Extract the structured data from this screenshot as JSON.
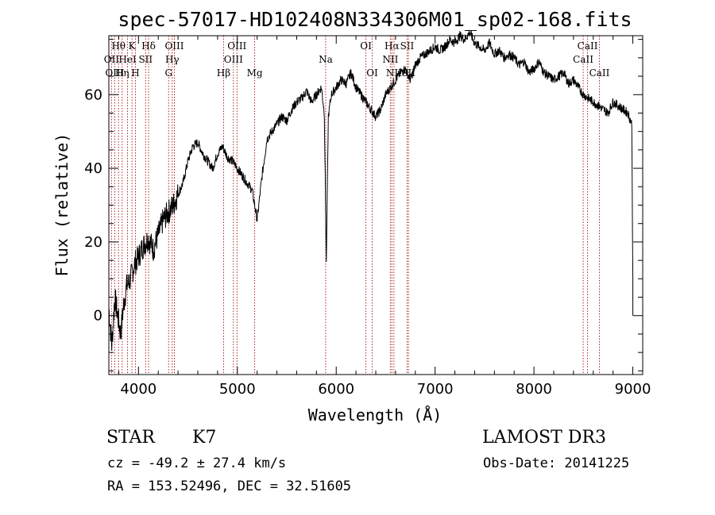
{
  "chart_data": {
    "type": "line",
    "title": "spec-57017-HD102408N334306M01_sp02-168.fits",
    "xlabel": "Wavelength (Å)",
    "ylabel": "Flux (relative)",
    "xlim": [
      3700,
      9100
    ],
    "ylim": [
      -16,
      76
    ],
    "xticks": [
      4000,
      5000,
      6000,
      7000,
      8000,
      9000
    ],
    "xtick_labels": [
      "4000",
      "5000",
      "6000",
      "7000",
      "8000",
      "9000"
    ],
    "yticks": [
      0,
      20,
      40,
      60
    ],
    "ytick_labels": [
      "0",
      "20",
      "40",
      "60"
    ],
    "series": [
      {
        "name": "flux",
        "x": [
          3700,
          3730,
          3760,
          3790,
          3820,
          3850,
          3880,
          3920,
          3960,
          4000,
          4050,
          4100,
          4150,
          4200,
          4250,
          4300,
          4350,
          4400,
          4450,
          4500,
          4550,
          4600,
          4650,
          4700,
          4750,
          4800,
          4850,
          4900,
          4950,
          5000,
          5050,
          5100,
          5150,
          5200,
          5250,
          5300,
          5350,
          5400,
          5450,
          5500,
          5550,
          5600,
          5650,
          5700,
          5750,
          5800,
          5850,
          5880,
          5900,
          5920,
          5950,
          6000,
          6050,
          6100,
          6150,
          6200,
          6250,
          6300,
          6350,
          6400,
          6450,
          6500,
          6550,
          6600,
          6650,
          6700,
          6750,
          6800,
          6850,
          6900,
          6950,
          7000,
          7050,
          7100,
          7150,
          7200,
          7250,
          7300,
          7350,
          7400,
          7450,
          7500,
          7550,
          7600,
          7650,
          7700,
          7750,
          7800,
          7850,
          7900,
          7950,
          8000,
          8050,
          8100,
          8150,
          8200,
          8250,
          8300,
          8350,
          8400,
          8450,
          8500,
          8550,
          8600,
          8650,
          8700,
          8750,
          8800,
          8850,
          8900,
          8950,
          8990,
          9000
        ],
        "y": [
          2,
          -8,
          5,
          0,
          -5,
          3,
          8,
          10,
          14,
          16,
          19,
          21,
          18,
          22,
          26,
          28,
          30,
          33,
          36,
          42,
          46,
          47,
          44,
          42,
          40,
          44,
          46,
          43,
          42,
          40,
          38,
          36,
          34,
          26,
          38,
          48,
          50,
          52,
          54,
          53,
          56,
          58,
          59,
          61,
          58,
          60,
          62,
          55,
          14,
          54,
          60,
          62,
          64,
          63,
          66,
          62,
          60,
          58,
          56,
          54,
          56,
          60,
          62,
          64,
          66,
          67,
          64,
          68,
          70,
          71,
          72,
          73,
          72,
          73,
          75,
          74,
          76,
          75,
          77,
          74,
          73,
          72,
          74,
          71,
          72,
          70,
          71,
          70,
          68,
          69,
          66,
          67,
          69,
          66,
          65,
          64,
          65,
          66,
          63,
          64,
          62,
          60,
          59,
          58,
          57,
          56,
          55,
          58,
          57,
          56,
          55,
          52,
          10
        ]
      }
    ],
    "lines": [
      {
        "label": "Hθ",
        "x": 3798,
        "row": 0
      },
      {
        "label": "OII",
        "x": 3727,
        "row": 1
      },
      {
        "label": "OIII",
        "x": 3760,
        "row": 2
      },
      {
        "label": "K",
        "x": 3934,
        "row": 0
      },
      {
        "label": "HeI",
        "x": 3889,
        "row": 1
      },
      {
        "label": "Hη",
        "x": 3835,
        "row": 2
      },
      {
        "label": "Hδ",
        "x": 4102,
        "row": 0
      },
      {
        "label": "SII",
        "x": 4072,
        "row": 1
      },
      {
        "label": "H",
        "x": 3969,
        "row": 2
      },
      {
        "label": "OIII",
        "x": 4363,
        "row": 0
      },
      {
        "label": "Hγ",
        "x": 4341,
        "row": 1
      },
      {
        "label": "G",
        "x": 4305,
        "row": 2
      },
      {
        "label": "OIII",
        "x": 4996,
        "row": 0
      },
      {
        "label": "OIII",
        "x": 4960,
        "row": 1
      },
      {
        "label": "Hβ",
        "x": 4861,
        "row": 2
      },
      {
        "label": "Mg",
        "x": 5175,
        "row": 2
      },
      {
        "label": "Na",
        "x": 5893,
        "row": 1
      },
      {
        "label": "OI",
        "x": 6300,
        "row": 0
      },
      {
        "label": "OI",
        "x": 6364,
        "row": 2
      },
      {
        "label": "Hα",
        "x": 6563,
        "row": 0
      },
      {
        "label": "SII",
        "x": 6717,
        "row": 0
      },
      {
        "label": "NII",
        "x": 6548,
        "row": 1
      },
      {
        "label": "NII",
        "x": 6584,
        "row": 2
      },
      {
        "label": "SII",
        "x": 6731,
        "row": 2
      },
      {
        "label": "CaII",
        "x": 8542,
        "row": 0
      },
      {
        "label": "CaII",
        "x": 8498,
        "row": 1
      },
      {
        "label": "CaII",
        "x": 8662,
        "row": 2
      }
    ]
  },
  "info": {
    "object_class": "STAR",
    "subclass": "K7",
    "survey": "LAMOST DR3",
    "cz": "cz = -49.2 ± 27.4 km/s",
    "obs_date": "Obs-Date: 20141225",
    "radec": "RA = 153.52496, DEC =  32.51605"
  }
}
